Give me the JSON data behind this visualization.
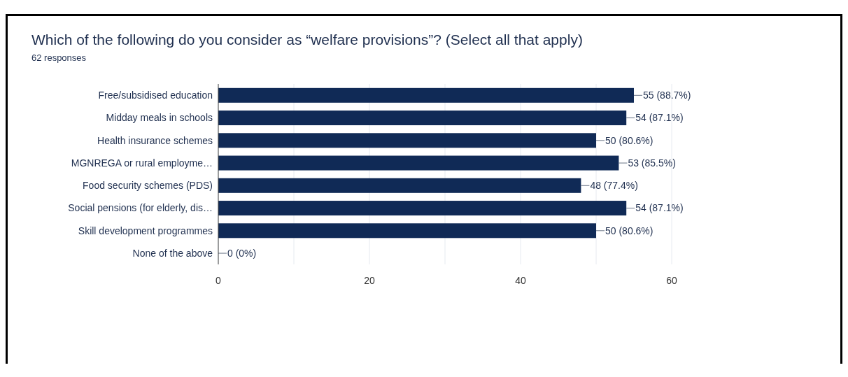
{
  "chart_data": {
    "type": "bar",
    "orientation": "horizontal",
    "title": "Which of the following do you consider as “welfare provisions”? (Select all that apply)",
    "subtitle": "62 responses",
    "categories": [
      "Free/subsidised education",
      "Midday meals in schools",
      "Health insurance schemes",
      "MGNREGA or rural employme…",
      "Food security schemes (PDS)",
      "Social pensions (for elderly, dis…",
      "Skill development programmes",
      "None of the above"
    ],
    "values": [
      55,
      54,
      50,
      53,
      48,
      54,
      50,
      0
    ],
    "value_labels": [
      "55 (88.7%)",
      "54 (87.1%)",
      "50 (80.6%)",
      "53 (85.5%)",
      "48 (77.4%)",
      "54 (87.1%)",
      "50 (80.6%)",
      "0 (0%)"
    ],
    "color": "#102a56",
    "xlim": [
      0,
      60
    ],
    "xticks": [
      0,
      {
        "value": 10,
        "label": null
      },
      20,
      {
        "value": 30,
        "label": null
      },
      40,
      {
        "value": 50,
        "label": null
      },
      60
    ],
    "grid": "x"
  }
}
